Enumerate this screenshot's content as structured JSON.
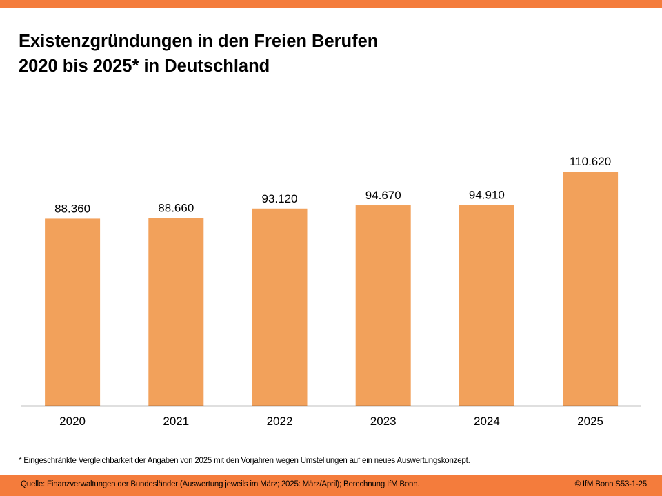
{
  "colors": {
    "accent": "#F47C3C",
    "bar": "#F2A15B",
    "axis": "#000000"
  },
  "title_line1": "Existenzgründungen in den Freien Berufen",
  "title_line2": "2020 bis 2025* in Deutschland",
  "footnote": "* Eingeschränkte Vergleichbarkeit der Angaben von 2025 mit den Vorjahren wegen Umstellungen auf ein neues Auswertungskonzept.",
  "source": "Quelle: Finanzverwaltungen der Bundesländer (Auswertung jeweils im März; 2025: März/April); Berechnung IfM Bonn.",
  "copyright": "© IfM Bonn  S53-1-25",
  "chart_data": {
    "type": "bar",
    "title": "Existenzgründungen in den Freien Berufen 2020 bis 2025* in Deutschland",
    "xlabel": "",
    "ylabel": "",
    "categories": [
      "2020",
      "2021",
      "2022",
      "2023",
      "2024",
      "2025"
    ],
    "values": [
      88360,
      88660,
      93120,
      94670,
      94910,
      110620
    ],
    "value_labels": [
      "88.360",
      "88.660",
      "93.120",
      "94.670",
      "94.910",
      "110.620"
    ],
    "ylim": [
      0,
      110620
    ],
    "grid": false,
    "legend": "none"
  }
}
